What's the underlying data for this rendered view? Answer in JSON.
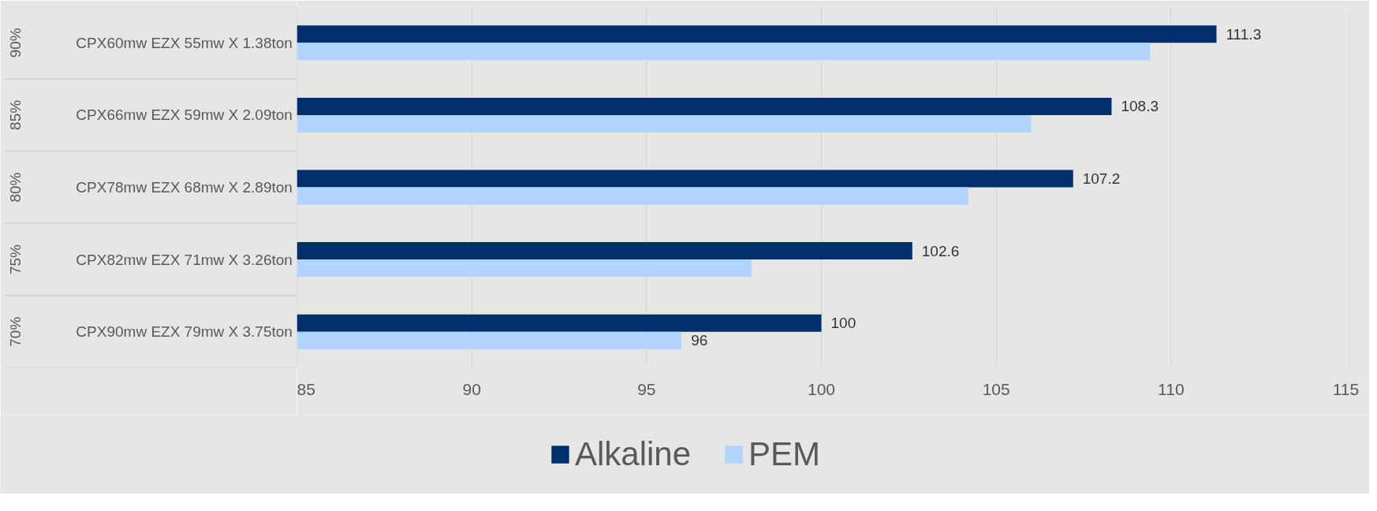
{
  "chart_data": {
    "type": "bar",
    "orientation": "horizontal",
    "categories": [
      "90%\nCPX60mw EZX 55mw X 1.38ton",
      "85%\nCPX66mw EZX 59mw X 2.09ton",
      "80%\nCPX78mw EZX 68mw X 2.89ton",
      "75%\nCPX82mw EZX 71mw X 3.26ton",
      "70%\nCPX90mw EZX 79mw X 3.75ton"
    ],
    "series": [
      {
        "name": "Alkaline",
        "color": "#002f6c",
        "values": [
          111.3,
          108.3,
          107.2,
          102.6,
          100
        ],
        "value_labels": [
          "111.3",
          "108.3",
          "107.2",
          "102.6",
          "100"
        ]
      },
      {
        "name": "PEM",
        "color": "#b0d3ff",
        "values": [
          109.4,
          106.0,
          104.2,
          98.0,
          96
        ],
        "value_labels": [
          null,
          null,
          null,
          null,
          "96"
        ]
      }
    ],
    "xlim": [
      85,
      115
    ],
    "xticks": [
      85,
      90,
      95,
      100,
      105,
      110,
      115
    ],
    "grid": "x",
    "legend": "bottom"
  }
}
